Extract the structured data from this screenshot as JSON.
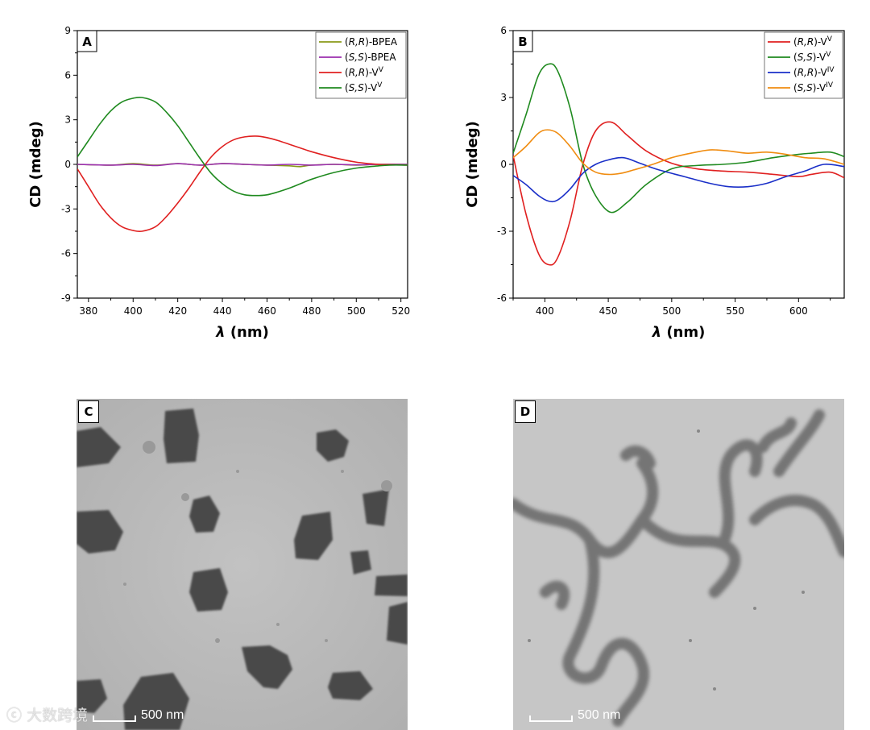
{
  "chart_data": [
    {
      "panel": "A",
      "type": "line",
      "xlabel": "λ (nm)",
      "ylabel": "CD (mdeg)",
      "xlim": [
        375,
        523
      ],
      "ylim": [
        -9,
        9
      ],
      "xticks": [
        380,
        400,
        420,
        440,
        460,
        480,
        500,
        520
      ],
      "yticks": [
        -9,
        -6,
        -3,
        0,
        3,
        6,
        9
      ],
      "legend_position": "top-right",
      "series": [
        {
          "name": "(R,R)-BPEA",
          "color": "#8a9a1a",
          "x": [
            375,
            390,
            400,
            410,
            420,
            430,
            440,
            450,
            460,
            470,
            475,
            480,
            490,
            500,
            510,
            523
          ],
          "y": [
            0,
            -0.05,
            0.05,
            -0.05,
            0.05,
            -0.05,
            0.05,
            0,
            -0.05,
            -0.1,
            -0.15,
            -0.05,
            0,
            -0.05,
            0,
            0
          ]
        },
        {
          "name": "(S,S)-BPEA",
          "color": "#9b2fae",
          "x": [
            375,
            390,
            400,
            410,
            420,
            430,
            440,
            450,
            460,
            470,
            480,
            490,
            500,
            510,
            523
          ],
          "y": [
            0,
            -0.05,
            0,
            -0.08,
            0.05,
            -0.05,
            0.05,
            0,
            -0.05,
            0,
            -0.05,
            0,
            -0.03,
            0,
            0
          ]
        },
        {
          "name": "(R,R)-V^V",
          "color": "#e02020",
          "x": [
            375,
            380,
            385,
            390,
            395,
            400,
            404,
            410,
            415,
            420,
            425,
            430,
            435,
            440,
            445,
            450,
            455,
            460,
            465,
            470,
            475,
            480,
            490,
            500,
            510,
            515,
            523
          ],
          "y": [
            -0.3,
            -1.5,
            -2.7,
            -3.6,
            -4.2,
            -4.45,
            -4.5,
            -4.2,
            -3.5,
            -2.6,
            -1.6,
            -0.5,
            0.5,
            1.2,
            1.65,
            1.85,
            1.9,
            1.8,
            1.6,
            1.35,
            1.1,
            0.85,
            0.45,
            0.15,
            0,
            -0.02,
            -0.05
          ]
        },
        {
          "name": "(S,S)-V^V",
          "color": "#1f8a1f",
          "x": [
            375,
            380,
            385,
            390,
            395,
            400,
            404,
            410,
            415,
            420,
            425,
            430,
            435,
            440,
            445,
            450,
            455,
            460,
            465,
            470,
            475,
            480,
            490,
            500,
            510,
            515,
            523
          ],
          "y": [
            0.5,
            1.6,
            2.7,
            3.6,
            4.2,
            4.45,
            4.5,
            4.2,
            3.5,
            2.6,
            1.5,
            0.4,
            -0.6,
            -1.3,
            -1.8,
            -2.05,
            -2.1,
            -2.05,
            -1.85,
            -1.6,
            -1.3,
            -1.0,
            -0.55,
            -0.25,
            -0.1,
            -0.05,
            -0.05
          ]
        }
      ]
    },
    {
      "panel": "B",
      "type": "line",
      "xlabel": "λ (nm)",
      "ylabel": "CD (mdeg)",
      "xlim": [
        375,
        636
      ],
      "ylim": [
        -6,
        6
      ],
      "xticks": [
        400,
        450,
        500,
        550,
        600
      ],
      "yticks": [
        -6,
        -3,
        0,
        3,
        6
      ],
      "legend_position": "top-right",
      "series": [
        {
          "name": "(R,R)-V^V",
          "color": "#e02020",
          "x": [
            375,
            385,
            395,
            403,
            410,
            420,
            430,
            440,
            452,
            465,
            480,
            500,
            520,
            540,
            560,
            580,
            600,
            610,
            625,
            636
          ],
          "y": [
            0.4,
            -2.2,
            -4.0,
            -4.5,
            -4.2,
            -2.5,
            0,
            1.5,
            1.9,
            1.3,
            0.6,
            0.05,
            -0.2,
            -0.3,
            -0.35,
            -0.45,
            -0.55,
            -0.45,
            -0.35,
            -0.6
          ]
        },
        {
          "name": "(S,S)-V^V",
          "color": "#1f8a1f",
          "x": [
            375,
            385,
            395,
            403,
            410,
            420,
            430,
            440,
            452,
            465,
            480,
            500,
            520,
            540,
            560,
            580,
            600,
            610,
            625,
            636
          ],
          "y": [
            0.5,
            2.2,
            4.0,
            4.5,
            4.2,
            2.5,
            0,
            -1.4,
            -2.15,
            -1.7,
            -0.9,
            -0.2,
            -0.05,
            0,
            0.1,
            0.3,
            0.45,
            0.5,
            0.55,
            0.35
          ]
        },
        {
          "name": "(R,R)-V^IV",
          "color": "#1a2fc8",
          "x": [
            375,
            385,
            395,
            403,
            410,
            420,
            430,
            440,
            450,
            462,
            475,
            490,
            510,
            530,
            545,
            560,
            575,
            590,
            605,
            620,
            636
          ],
          "y": [
            -0.5,
            -0.9,
            -1.4,
            -1.65,
            -1.6,
            -1.1,
            -0.4,
            0.0,
            0.2,
            0.3,
            0.05,
            -0.25,
            -0.55,
            -0.85,
            -1.0,
            -1.0,
            -0.85,
            -0.55,
            -0.3,
            0.0,
            -0.1
          ]
        },
        {
          "name": "(S,S)-V^IV",
          "color": "#f08c10",
          "x": [
            375,
            385,
            395,
            402,
            410,
            420,
            430,
            440,
            450,
            460,
            470,
            485,
            500,
            515,
            530,
            545,
            560,
            575,
            590,
            605,
            620,
            636
          ],
          "y": [
            0.3,
            0.8,
            1.4,
            1.55,
            1.4,
            0.8,
            0.05,
            -0.35,
            -0.45,
            -0.4,
            -0.25,
            0.0,
            0.3,
            0.5,
            0.65,
            0.6,
            0.5,
            0.55,
            0.45,
            0.3,
            0.25,
            0.0
          ]
        }
      ]
    }
  ],
  "images": [
    {
      "panel": "C",
      "scale_bar": "500 nm"
    },
    {
      "panel": "D",
      "scale_bar": "500 nm"
    }
  ],
  "watermark": "大数跨境"
}
